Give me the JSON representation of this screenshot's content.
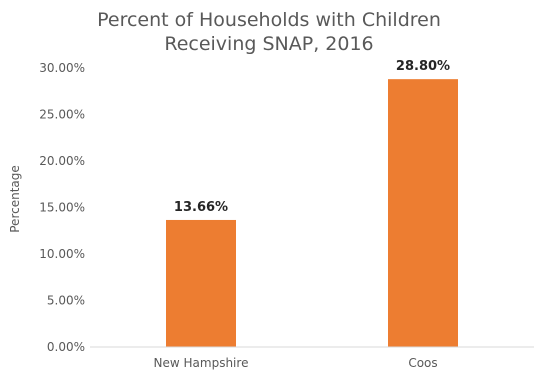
{
  "chart_data": {
    "type": "bar",
    "title_lines": [
      "Percent of Households with Children",
      "Receiving SNAP, 2016"
    ],
    "xlabel": "",
    "ylabel": "Percentage",
    "categories": [
      "New Hampshire",
      "Coos"
    ],
    "values": [
      13.66,
      28.8
    ],
    "data_labels": [
      "13.66%",
      "28.80%"
    ],
    "ylim": [
      0,
      30
    ],
    "y_ticks": [
      0,
      5,
      10,
      15,
      20,
      25,
      30
    ],
    "y_tick_labels": [
      "0.00%",
      "5.00%",
      "10.00%",
      "15.00%",
      "20.00%",
      "25.00%",
      "30.00%"
    ],
    "grid": false,
    "legend": "none",
    "bar_color": "#ED7D31",
    "axis_color": "#D9D9D9"
  }
}
